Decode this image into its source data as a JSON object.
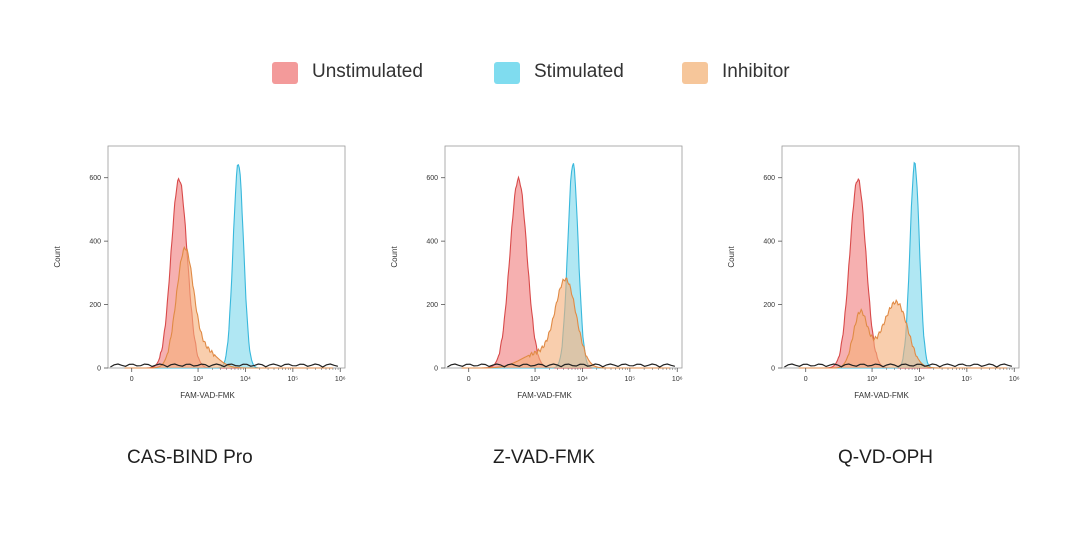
{
  "legend": [
    {
      "label": "Unstimulated",
      "color": "#f39a9a"
    },
    {
      "label": "Stimulated",
      "color": "#7fdcef"
    },
    {
      "label": "Inhibitor",
      "color": "#f6c69a"
    }
  ],
  "panels": [
    {
      "name": "CAS-BIND Pro"
    },
    {
      "name": "Z-VAD-FMK"
    },
    {
      "name": "Q-VD-OPH"
    }
  ],
  "colors": {
    "unstimulated_fill": "#f08080",
    "unstimulated_line": "#d84a4a",
    "stimulated_fill": "#7fd8ec",
    "stimulated_line": "#38b8dc",
    "inhibitor_fill": "#f5b07a",
    "inhibitor_line": "#e08a45"
  },
  "chart_data": [
    {
      "type": "area",
      "xlabel": "FAM-VAD-FMK",
      "ylabel": "Count",
      "x_scale": "log",
      "x_ticks": [
        "0",
        "10³",
        "10⁴",
        "10⁵",
        "10⁶"
      ],
      "y_ticks": [
        0,
        200,
        400,
        600
      ],
      "ylim": [
        0,
        700
      ],
      "series": [
        {
          "name": "Unstimulated",
          "peaks": [
            {
              "center_log10": 2.6,
              "height": 595,
              "width": 0.17
            }
          ]
        },
        {
          "name": "Stimulated",
          "peaks": [
            {
              "center_log10": 3.85,
              "height": 645,
              "width": 0.11
            }
          ]
        },
        {
          "name": "Inhibitor",
          "peaks": [
            {
              "center_log10": 2.72,
              "height": 365,
              "width": 0.18
            },
            {
              "center_log10": 3.15,
              "height": 55,
              "width": 0.25
            }
          ]
        }
      ]
    },
    {
      "type": "area",
      "xlabel": "FAM-VAD-FMK",
      "ylabel": "Count",
      "x_scale": "log",
      "x_ticks": [
        "0",
        "10³",
        "10⁴",
        "10⁵",
        "10⁶"
      ],
      "y_ticks": [
        0,
        200,
        400,
        600
      ],
      "ylim": [
        0,
        700
      ],
      "series": [
        {
          "name": "Unstimulated",
          "peaks": [
            {
              "center_log10": 2.65,
              "height": 595,
              "width": 0.18
            }
          ]
        },
        {
          "name": "Stimulated",
          "peaks": [
            {
              "center_log10": 3.8,
              "height": 645,
              "width": 0.11
            }
          ]
        },
        {
          "name": "Inhibitor",
          "peaks": [
            {
              "center_log10": 3.65,
              "height": 270,
              "width": 0.22
            },
            {
              "center_log10": 3.05,
              "height": 45,
              "width": 0.35
            }
          ]
        }
      ]
    },
    {
      "type": "area",
      "xlabel": "FAM-VAD-FMK",
      "ylabel": "Count",
      "x_scale": "log",
      "x_ticks": [
        "0",
        "10³",
        "10⁴",
        "10⁵",
        "10⁶"
      ],
      "y_ticks": [
        0,
        200,
        400,
        600
      ],
      "ylim": [
        0,
        700
      ],
      "series": [
        {
          "name": "Unstimulated",
          "peaks": [
            {
              "center_log10": 2.7,
              "height": 595,
              "width": 0.17
            }
          ]
        },
        {
          "name": "Stimulated",
          "peaks": [
            {
              "center_log10": 3.9,
              "height": 645,
              "width": 0.1
            }
          ]
        },
        {
          "name": "Inhibitor",
          "peaks": [
            {
              "center_log10": 2.75,
              "height": 170,
              "width": 0.15
            },
            {
              "center_log10": 3.55,
              "height": 185,
              "width": 0.22
            },
            {
              "center_log10": 3.2,
              "height": 70,
              "width": 0.22
            }
          ]
        }
      ]
    }
  ]
}
